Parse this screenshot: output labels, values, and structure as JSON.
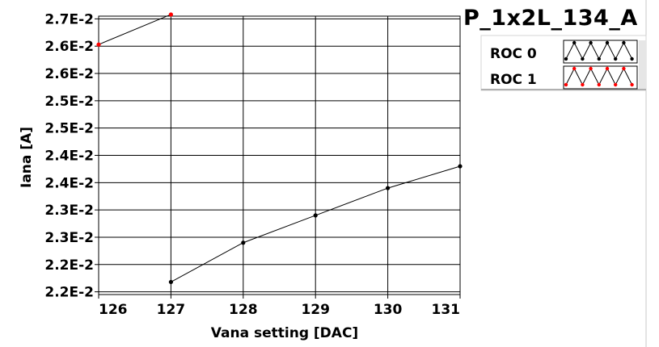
{
  "plot_title": "P_1x2L_134_A",
  "legend": [
    {
      "label": "ROC 0",
      "color": "#000000"
    },
    {
      "label": "ROC 1",
      "color": "#ff0000"
    }
  ],
  "chart_data": {
    "type": "line",
    "xlabel": "Vana setting [DAC]",
    "ylabel": "Iana [A]",
    "xlim": [
      126,
      131
    ],
    "ylim": [
      0.02195,
      0.02705
    ],
    "x_tick_labels": [
      "126",
      "127",
      "128",
      "129",
      "130",
      "131"
    ],
    "x_tick_values": [
      126,
      127,
      128,
      129,
      130,
      131
    ],
    "y_tick_labels": [
      "2.2E-2",
      "2.2E-2",
      "2.3E-2",
      "2.3E-2",
      "2.4E-2",
      "2.4E-2",
      "2.5E-2",
      "2.5E-2",
      "2.6E-2",
      "2.6E-2",
      "2.7E-2"
    ],
    "y_tick_values": [
      0.022,
      0.0225,
      0.023,
      0.0235,
      0.024,
      0.0245,
      0.025,
      0.0255,
      0.026,
      0.0265,
      0.027
    ],
    "grid": true,
    "series": [
      {
        "name": "ROC 0",
        "color": "#000000",
        "x": [
          127,
          128,
          129,
          130,
          131
        ],
        "y": [
          0.02218,
          0.0229,
          0.0234,
          0.0239,
          0.0243
        ]
      },
      {
        "name": "ROC 1",
        "color": "#ff0000",
        "x": [
          126,
          127
        ],
        "y": [
          0.02653,
          0.02708
        ]
      }
    ]
  }
}
